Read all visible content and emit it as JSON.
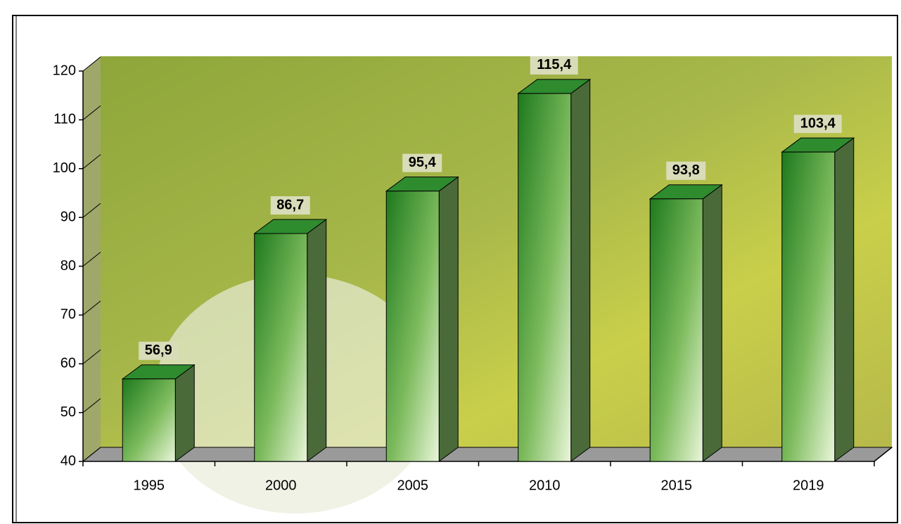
{
  "chart_data": {
    "type": "bar3d",
    "categories": [
      "1995",
      "2000",
      "2005",
      "2010",
      "2015",
      "2019"
    ],
    "values": [
      56.9,
      86.7,
      95.4,
      115.4,
      93.8,
      103.4
    ],
    "value_labels": [
      "56,9",
      "86,7",
      "95,4",
      "115,4",
      "93,8",
      "103,4"
    ],
    "color": "#2e8b2e",
    "ylim": [
      40,
      120
    ],
    "yticks": [
      40,
      50,
      60,
      70,
      80,
      90,
      100,
      110,
      120
    ]
  }
}
